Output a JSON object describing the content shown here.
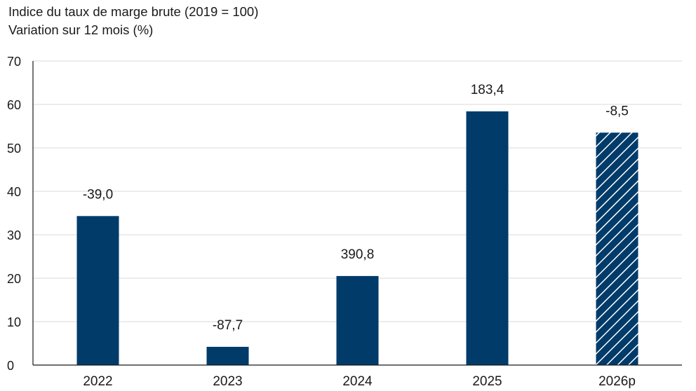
{
  "header": {
    "title": "Indice du taux de marge brute (2019 = 100)",
    "subtitle": "Variation sur 12 mois (%)"
  },
  "colors": {
    "bar": "#003B6A",
    "grid": "#d9d9d9",
    "axis": "#1a1a1a",
    "hatch": "#ffffff"
  },
  "chart_data": {
    "type": "bar",
    "title": "Indice du taux de marge brute (2019 = 100)",
    "subtitle": "Variation sur 12 mois (%)",
    "categories": [
      "2022",
      "2023",
      "2024",
      "2025",
      "2026p"
    ],
    "values": [
      34.3,
      4.2,
      20.5,
      58.4,
      53.5
    ],
    "data_labels": [
      "-39,0",
      "-87,7",
      "390,8",
      "183,4",
      "-8,5"
    ],
    "hatched": [
      false,
      false,
      false,
      false,
      true
    ],
    "ylim": [
      0,
      70
    ],
    "yticks": [
      0,
      10,
      20,
      30,
      40,
      50,
      60,
      70
    ],
    "grid": true,
    "legend": "none"
  }
}
